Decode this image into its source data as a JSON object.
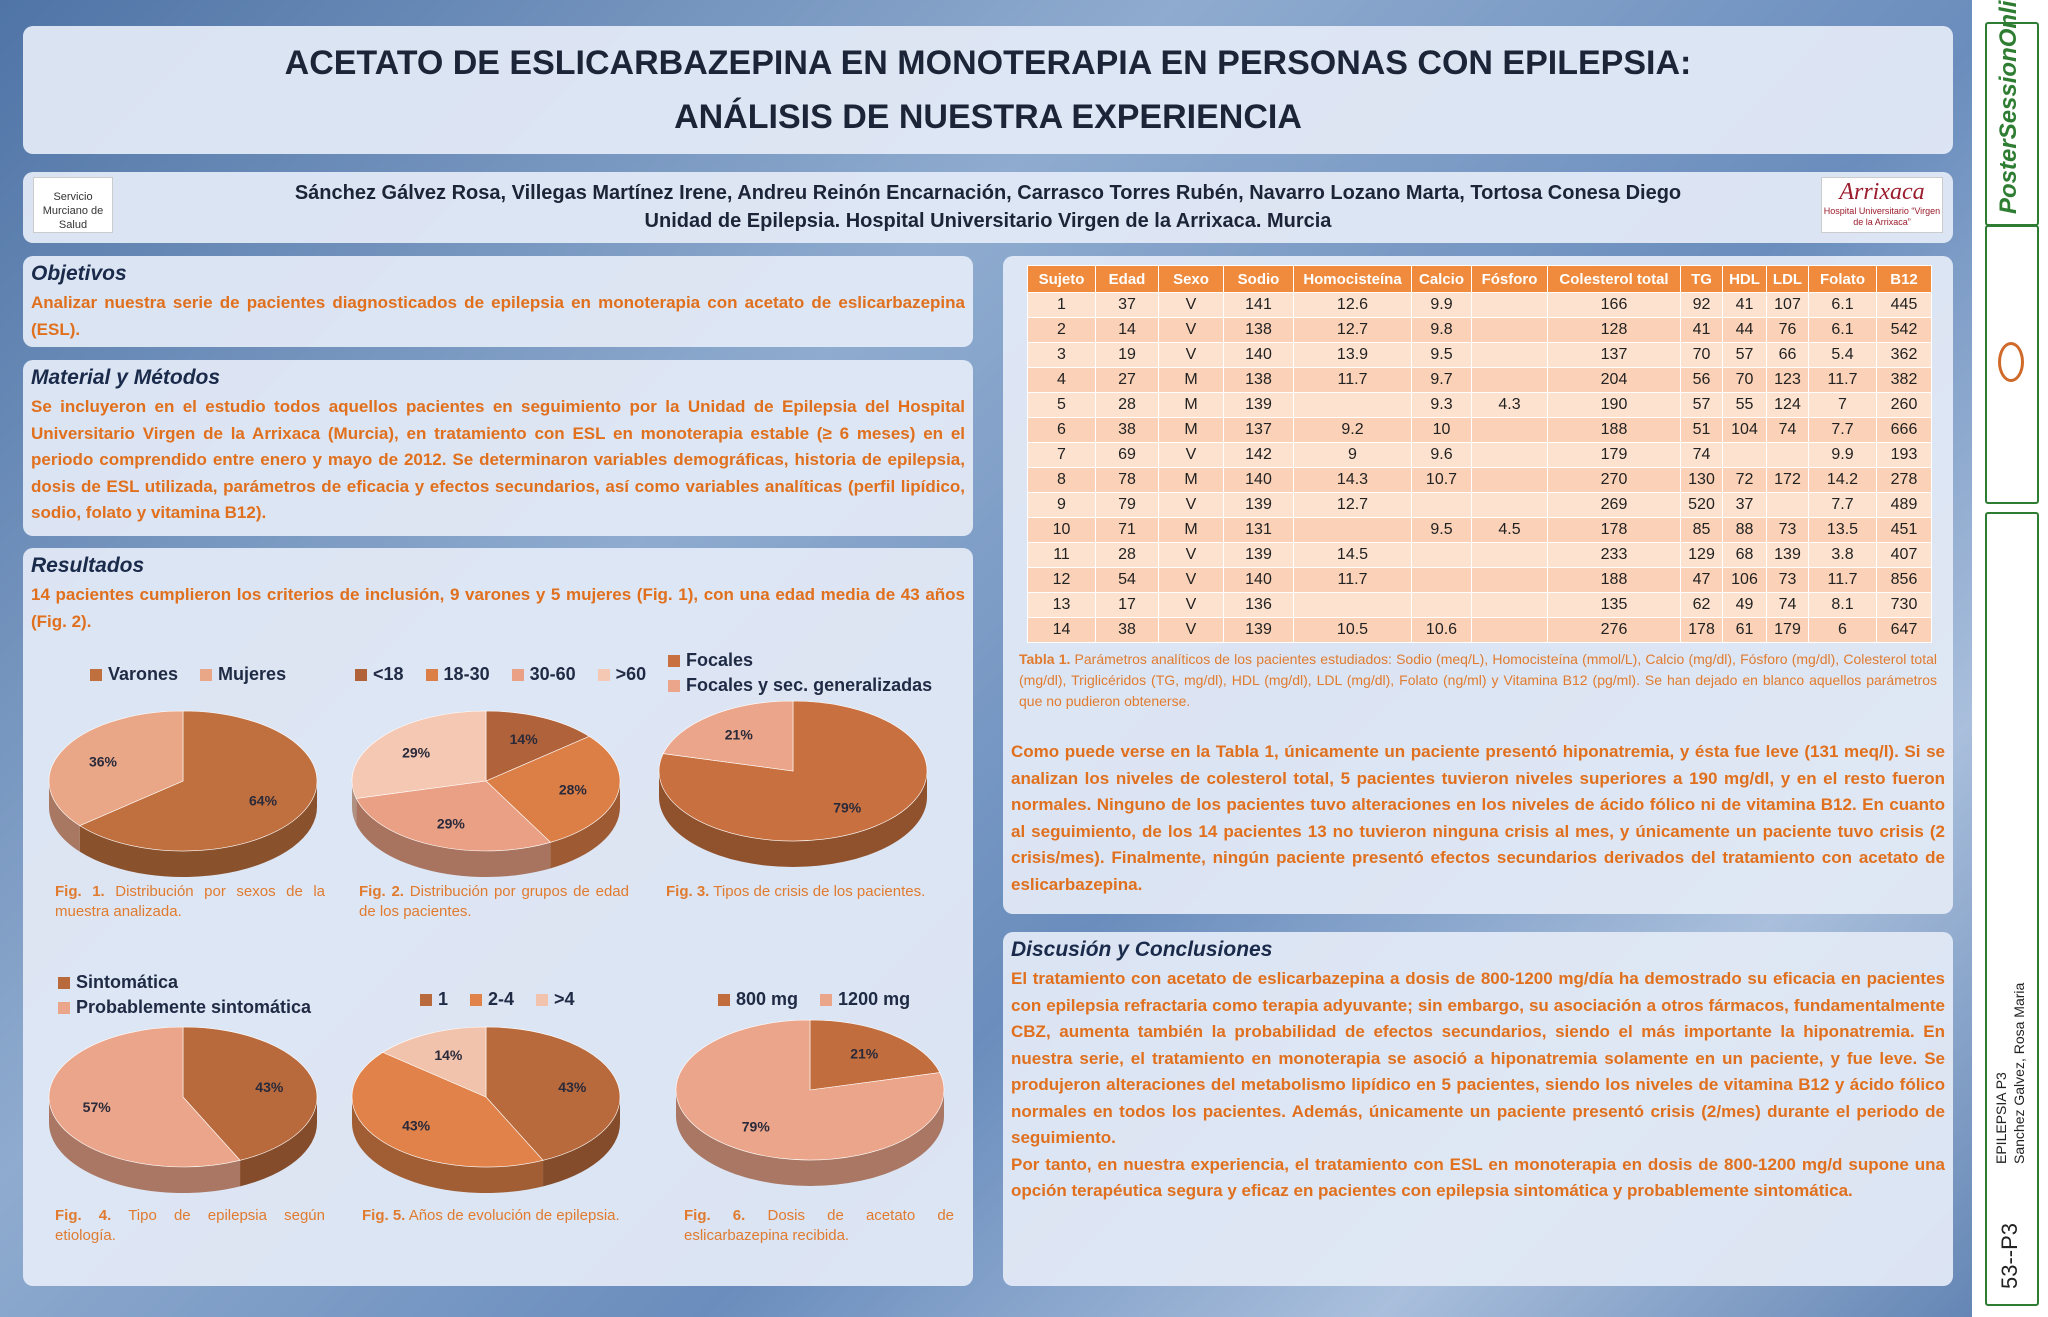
{
  "header": {
    "title_lines": [
      "ACETATO DE ESLICARBAZEPINA EN MONOTERAPIA EN PERSONAS CON EPILEPSIA:",
      "ANÁLISIS DE NUESTRA EXPERIENCIA"
    ],
    "authors": "Sánchez Gálvez Rosa, Villegas Martínez Irene, Andreu Reinón Encarnación, Carrasco Torres Rubén, Navarro Lozano Marta, Tortosa Conesa Diego",
    "affiliation": "Unidad de Epilepsia. Hospital Universitario Virgen de la Arrixaca. Murcia",
    "logo_left": "Servicio Murciano de Salud",
    "logo_right": "Arrixaca",
    "logo_right_sub": "Hospital Universitario “Virgen de la Arrixaca”"
  },
  "objetivos": {
    "title": "Objetivos",
    "text": "Analizar nuestra serie de pacientes diagnosticados de epilepsia en monoterapia con acetato de eslicarbazepina (ESL)."
  },
  "material": {
    "title": "Material y Métodos",
    "text": "Se incluyeron en el estudio todos aquellos pacientes en seguimiento por la Unidad de Epilepsia del Hospital Universitario Virgen de la Arrixaca (Murcia), en tratamiento con ESL en monoterapia estable (≥ 6 meses) en el periodo comprendido entre enero y mayo de 2012. Se determinaron variables demográficas, historia de epilepsia, dosis de ESL utilizada, parámetros de eficacia y efectos secundarios, así como variables analíticas (perfil lipídico, sodio, folato y vitamina B12)."
  },
  "resultados": {
    "title": "Resultados",
    "text": "14 pacientes cumplieron los criterios de inclusión, 9 varones y 5 mujeres (Fig. 1), con una edad media de 43 años (Fig. 2)."
  },
  "chart_data": [
    {
      "type": "pie",
      "categories": [
        "Varones",
        "Mujeres"
      ],
      "values": [
        64,
        36
      ],
      "value_labels": [
        "64%",
        "36%"
      ],
      "colors": [
        "#c0703f",
        "#e9a788"
      ],
      "caption": {
        "label": "Fig. 1.",
        "text": "Distribución por sexos de la muestra analizada."
      }
    },
    {
      "type": "pie",
      "categories": [
        "<18",
        "18-30",
        "30-60",
        ">60"
      ],
      "values": [
        14,
        28,
        29,
        29
      ],
      "value_labels": [
        "14%",
        "28%",
        "29%",
        "29%"
      ],
      "colors": [
        "#b0623a",
        "#dc7f47",
        "#eaa084",
        "#f4c8b3"
      ],
      "caption": {
        "label": "Fig. 2.",
        "text": "Distribución por grupos de edad de los pacientes."
      }
    },
    {
      "type": "pie",
      "categories": [
        "Focales",
        "Focales y sec. generalizadas"
      ],
      "values": [
        79,
        21
      ],
      "value_labels": [
        "79%",
        "21%"
      ],
      "colors": [
        "#c8703f",
        "#eba58a"
      ],
      "caption": {
        "label": "Fig. 3.",
        "text": "Tipos de crisis de los pacientes."
      }
    },
    {
      "type": "pie",
      "categories": [
        "Sintomática",
        "Probablemente sintomática"
      ],
      "values": [
        43,
        57
      ],
      "value_labels": [
        "43%",
        "57%"
      ],
      "colors": [
        "#b86a3c",
        "#eba58a"
      ],
      "caption": {
        "label": "Fig. 4.",
        "text": "Tipo de epilepsia según etiología."
      }
    },
    {
      "type": "pie",
      "categories": [
        "1",
        "2-4",
        ">4"
      ],
      "values": [
        43,
        43,
        14
      ],
      "value_labels": [
        "43%",
        "43%",
        "14%"
      ],
      "colors": [
        "#b86a3c",
        "#e0824a",
        "#f2c3ac"
      ],
      "caption": {
        "label": "Fig. 5.",
        "text": "Años de evolución de epilepsia."
      }
    },
    {
      "type": "pie",
      "categories": [
        "800 mg",
        "1200 mg"
      ],
      "values": [
        21,
        79
      ],
      "value_labels": [
        "21%",
        "79%"
      ],
      "colors": [
        "#c26d3e",
        "#eba58a"
      ],
      "caption": {
        "label": "Fig. 6.",
        "text": "Dosis de acetato de eslicarbazepina recibida."
      }
    }
  ],
  "table": {
    "headers": [
      "Sujeto",
      "Edad",
      "Sexo",
      "Sodio",
      "Homocisteína",
      "Calcio",
      "Fósforo",
      "Colesterol total",
      "TG",
      "HDL",
      "LDL",
      "Folato",
      "B12"
    ],
    "rows": [
      [
        1,
        37,
        "V",
        141,
        12.6,
        9.9,
        null,
        166,
        92,
        41,
        107,
        6.1,
        445
      ],
      [
        2,
        14,
        "V",
        138,
        12.7,
        9.8,
        null,
        128,
        41,
        44,
        76,
        6.1,
        542
      ],
      [
        3,
        19,
        "V",
        140,
        13.9,
        9.5,
        null,
        137,
        70,
        57,
        66,
        5.4,
        362
      ],
      [
        4,
        27,
        "M",
        138,
        11.7,
        9.7,
        null,
        204,
        56,
        70,
        123,
        11.7,
        382
      ],
      [
        5,
        28,
        "M",
        139,
        null,
        9.3,
        4.3,
        190,
        57,
        55,
        124,
        7,
        260
      ],
      [
        6,
        38,
        "M",
        137,
        9.2,
        10,
        null,
        188,
        51,
        104,
        74,
        7.7,
        666
      ],
      [
        7,
        69,
        "V",
        142,
        9,
        9.6,
        null,
        179,
        74,
        null,
        null,
        9.9,
        193
      ],
      [
        8,
        78,
        "M",
        140,
        14.3,
        10.7,
        null,
        270,
        130,
        72,
        172,
        14.2,
        278
      ],
      [
        9,
        79,
        "V",
        139,
        12.7,
        null,
        null,
        269,
        520,
        37,
        null,
        7.7,
        489
      ],
      [
        10,
        71,
        "M",
        131,
        null,
        9.5,
        4.5,
        178,
        85,
        88,
        73,
        13.5,
        451
      ],
      [
        11,
        28,
        "V",
        139,
        14.5,
        null,
        null,
        233,
        129,
        68,
        139,
        3.8,
        407
      ],
      [
        12,
        54,
        "V",
        140,
        11.7,
        null,
        null,
        188,
        47,
        106,
        73,
        11.7,
        856
      ],
      [
        13,
        17,
        "V",
        136,
        null,
        null,
        null,
        135,
        62,
        49,
        74,
        8.1,
        730
      ],
      [
        14,
        38,
        "V",
        139,
        10.5,
        10.6,
        null,
        276,
        178,
        61,
        179,
        6,
        647
      ]
    ],
    "caption_label": "Tabla 1.",
    "caption_text": "Parámetros analíticos de los pacientes estudiados: Sodio (meq/L), Homocisteína (mmol/L), Calcio (mg/dl), Fósforo (mg/dl), Colesterol total (mg/dl), Triglicéridos (TG, mg/dl), HDL (mg/dl), LDL (mg/dl), Folato (ng/ml) y Vitamina B12 (pg/ml). Se han dejado en blanco aquellos parámetros que no pudieron obtenerse."
  },
  "comentario": "Como puede verse en la Tabla 1, únicamente un paciente presentó hiponatremia, y ésta fue leve (131 meq/l). Si se analizan los niveles de colesterol total, 5 pacientes tuvieron niveles superiores a 190 mg/dl, y en el resto fueron normales. Ninguno de los pacientes tuvo alteraciones en los niveles de ácido fólico ni de vitamina B12. En cuanto al seguimiento, de los 14 pacientes 13 no tuvieron ninguna crisis al mes, y únicamente un paciente tuvo crisis (2 crisis/mes). Finalmente, ningún paciente presentó efectos secundarios derivados del tratamiento con acetato de eslicarbazepina.",
  "discusion": {
    "title": "Discusión y Conclusiones",
    "paragraphs": [
      "El tratamiento con acetato de eslicarbazepina a dosis de 800-1200 mg/día ha demostrado su eficacia en pacientes con epilepsia refractaria como terapia adyuvante; sin embargo, su asociación a otros fármacos, fundamentalmente CBZ, aumenta también la probabilidad de efectos secundarios, siendo el más importante la hiponatremia. En nuestra serie, el tratamiento en monoterapia se asoció a hiponatremia solamente en un paciente, y fue leve. Se produjeron alteraciones del metabolismo lipídico en 5 pacientes, siendo los niveles de vitamina B12 y ácido fólico normales en todos los pacientes. Además, únicamente un paciente presentó crisis (2/mes) durante el periodo de seguimiento.",
      "Por tanto, en nuestra experiencia, el tratamiento con ESL en monoterapia en dosis de 800-1200 mg/d supone una opción terapéutica segura y eficaz en pacientes con epilepsia sintomática y probablemente sintomática."
    ]
  },
  "sidebar": {
    "brand": "PosterSessionOnline",
    "topic": "EPILEPSIA P3",
    "author": "Sanchez Galvez, Rosa Maria",
    "code": "53--P3"
  }
}
